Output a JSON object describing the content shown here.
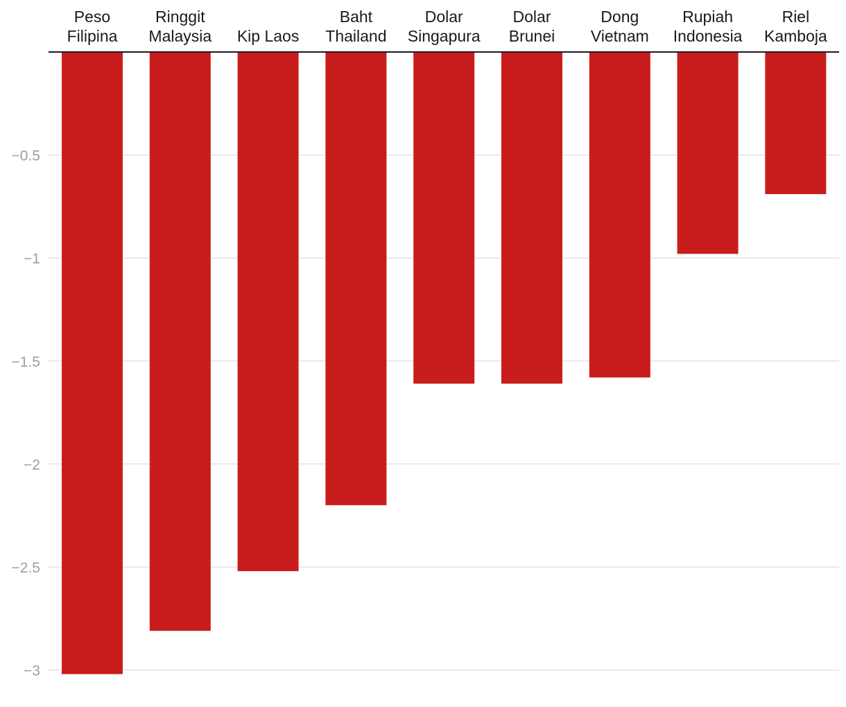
{
  "chart_data": {
    "type": "bar",
    "categories": [
      [
        "Peso",
        "Filipina"
      ],
      [
        "Ringgit",
        "Malaysia"
      ],
      [
        "Kip Laos"
      ],
      [
        "Baht",
        "Thailand"
      ],
      [
        "Dolar",
        "Singapura"
      ],
      [
        "Dolar",
        "Brunei"
      ],
      [
        "Dong",
        "Vietnam"
      ],
      [
        "Rupiah",
        "Indonesia"
      ],
      [
        "Riel",
        "Kamboja"
      ]
    ],
    "values": [
      -3.02,
      -2.81,
      -2.52,
      -2.2,
      -1.61,
      -1.61,
      -1.58,
      -0.98,
      -0.69
    ],
    "y_ticks": [
      {
        "value": -0.5,
        "label": "−0.5"
      },
      {
        "value": -1,
        "label": "−1"
      },
      {
        "value": -1.5,
        "label": "−1.5"
      },
      {
        "value": -2,
        "label": "−2"
      },
      {
        "value": -2.5,
        "label": "−2.5"
      },
      {
        "value": -3,
        "label": "−3"
      }
    ],
    "ylim": [
      -3.05,
      0
    ],
    "grid": true,
    "bar_color": "#c91c1c",
    "title": "",
    "xlabel": "",
    "ylabel": ""
  }
}
